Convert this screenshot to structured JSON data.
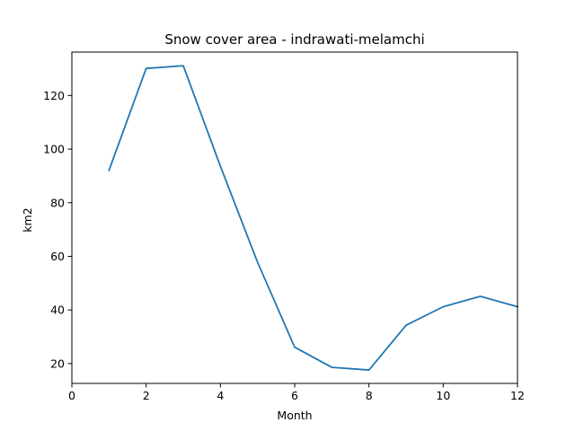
{
  "chart_data": {
    "type": "line",
    "title": "Snow cover area - indrawati-melamchi",
    "xlabel": "Month",
    "ylabel": "km2",
    "xlim": [
      0,
      12
    ],
    "ylim": [
      12.6,
      136.2
    ],
    "xticks": [
      0,
      2,
      4,
      6,
      8,
      10,
      12
    ],
    "yticks": [
      20,
      40,
      60,
      80,
      100,
      120
    ],
    "grid": false,
    "line_color": "#1f77b4",
    "series": [
      {
        "x": [
          1,
          2,
          3,
          4,
          5,
          6,
          7,
          8,
          9,
          10,
          11,
          12
        ],
        "values": [
          92.1,
          130.1,
          131.1,
          93.6,
          57.8,
          26.1,
          18.6,
          17.6,
          34.3,
          41.2,
          45.1,
          41.2
        ]
      }
    ]
  }
}
